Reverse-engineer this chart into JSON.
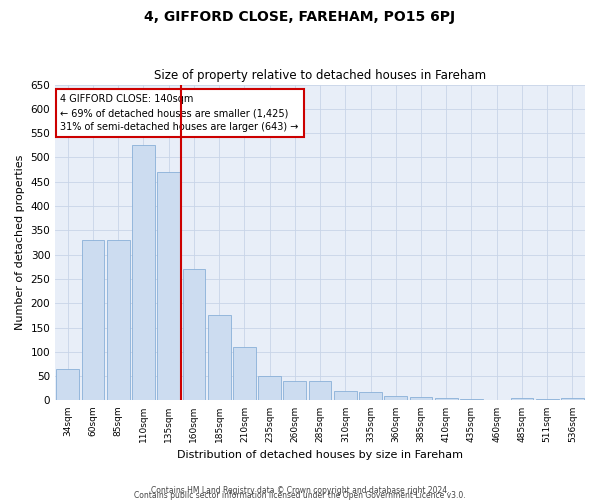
{
  "title": "4, GIFFORD CLOSE, FAREHAM, PO15 6PJ",
  "subtitle": "Size of property relative to detached houses in Fareham",
  "xlabel": "Distribution of detached houses by size in Fareham",
  "ylabel": "Number of detached properties",
  "categories": [
    "34sqm",
    "60sqm",
    "85sqm",
    "110sqm",
    "135sqm",
    "160sqm",
    "185sqm",
    "210sqm",
    "235sqm",
    "260sqm",
    "285sqm",
    "310sqm",
    "335sqm",
    "360sqm",
    "385sqm",
    "410sqm",
    "435sqm",
    "460sqm",
    "485sqm",
    "511sqm",
    "536sqm"
  ],
  "values": [
    65,
    330,
    330,
    525,
    470,
    270,
    175,
    110,
    50,
    40,
    40,
    20,
    18,
    10,
    8,
    5,
    2,
    1,
    5,
    2,
    5
  ],
  "bar_color": "#ccdcf0",
  "bar_edge_color": "#8ab0d8",
  "vline_x_index": 5,
  "vline_color": "#cc0000",
  "annotation_text": "4 GIFFORD CLOSE: 140sqm\n← 69% of detached houses are smaller (1,425)\n31% of semi-detached houses are larger (643) →",
  "annotation_box_color": "#cc0000",
  "ylim": [
    0,
    650
  ],
  "yticks": [
    0,
    50,
    100,
    150,
    200,
    250,
    300,
    350,
    400,
    450,
    500,
    550,
    600,
    650
  ],
  "footer_line1": "Contains HM Land Registry data © Crown copyright and database right 2024.",
  "footer_line2": "Contains public sector information licensed under the Open Government Licence v3.0.",
  "grid_color": "#c8d4e8",
  "bg_color": "#e8eef8",
  "fig_width": 6.0,
  "fig_height": 5.0
}
